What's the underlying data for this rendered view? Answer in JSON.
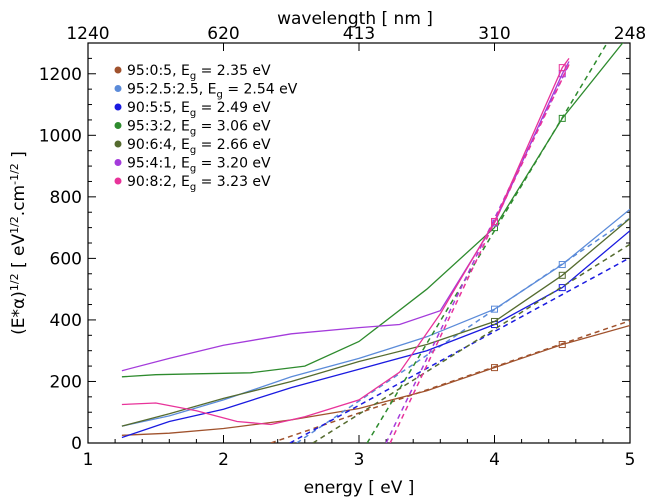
{
  "chart_data": {
    "type": "line",
    "xlabel": "energy [ eV ]",
    "ylabel": "(E*α)^1/2  [ eV^1/2.cm^-1/2 ]",
    "top_axis_label": "wavelength [ nm ]",
    "x_ticks": [
      "1",
      "2",
      "3",
      "4",
      "5"
    ],
    "y_ticks": [
      "0",
      "200",
      "400",
      "600",
      "800",
      "1000",
      "1200"
    ],
    "top_ticks": [
      {
        "label": "1240",
        "energy": 1
      },
      {
        "label": "620",
        "energy": 2
      },
      {
        "label": "413",
        "energy": 3
      },
      {
        "label": "310",
        "energy": 4
      },
      {
        "label": "248",
        "energy": 5
      }
    ],
    "xlim": [
      1,
      5
    ],
    "ylim": [
      0,
      1300
    ],
    "grid": false,
    "legend_position": "top-left",
    "series": [
      {
        "name": "95:0:5, E_g = 2.35 eV",
        "label_text": "95:0:5, E",
        "eg_text": "=  2.35 eV",
        "color": "#a0522d",
        "eg": 2.35,
        "points": [
          [
            1.25,
            25
          ],
          [
            1.6,
            32
          ],
          [
            2,
            47
          ],
          [
            2.5,
            75
          ],
          [
            3,
            112
          ],
          [
            3.5,
            170
          ],
          [
            4,
            245
          ],
          [
            4.5,
            320
          ],
          [
            5,
            382
          ]
        ],
        "fit": {
          "x": [
            2.35,
            5
          ],
          "slope": 150
        },
        "markers": [
          [
            4,
            245
          ],
          [
            4.5,
            320
          ]
        ]
      },
      {
        "name": "95:2.5:2.5, E_g = 2.54 eV",
        "label_text": "95:2.5:2.5, E",
        "eg_text": "=  2.54 eV",
        "color": "#5b8bd9",
        "eg": 2.54,
        "points": [
          [
            1.25,
            55
          ],
          [
            1.6,
            88
          ],
          [
            2,
            140
          ],
          [
            2.5,
            215
          ],
          [
            3,
            275
          ],
          [
            3.5,
            345
          ],
          [
            4,
            435
          ],
          [
            4.5,
            580
          ],
          [
            5,
            760
          ]
        ],
        "fit": {
          "x": [
            2.54,
            5
          ],
          "slope": 297
        },
        "markers": [
          [
            4,
            435
          ],
          [
            4.5,
            580
          ]
        ]
      },
      {
        "name": "90:5:5, E_g = 2.49 eV",
        "label_text": "90:5:5, E",
        "eg_text": "=  2.49 eV",
        "color": "#1a1ae0",
        "eg": 2.49,
        "points": [
          [
            1.25,
            18
          ],
          [
            1.6,
            70
          ],
          [
            2,
            110
          ],
          [
            2.5,
            180
          ],
          [
            3,
            240
          ],
          [
            3.5,
            300
          ],
          [
            4,
            385
          ],
          [
            4.5,
            505
          ],
          [
            5,
            690
          ]
        ],
        "fit": {
          "x": [
            2.49,
            5
          ],
          "slope": 240
        },
        "markers": [
          [
            4,
            385
          ],
          [
            4.5,
            505
          ]
        ]
      },
      {
        "name": "95:3:2, E_g = 3.06 eV",
        "label_text": "95:3:2, E",
        "eg_text": "=  3.06 eV",
        "color": "#2e8b2e",
        "eg": 3.06,
        "points": [
          [
            1.25,
            215
          ],
          [
            1.5,
            222
          ],
          [
            1.8,
            225
          ],
          [
            2.2,
            228
          ],
          [
            2.6,
            250
          ],
          [
            3,
            330
          ],
          [
            3.5,
            500
          ],
          [
            4,
            700
          ],
          [
            4.5,
            1055
          ],
          [
            5,
            1330
          ]
        ],
        "fit": {
          "x": [
            3.06,
            5
          ],
          "slope": 734
        },
        "markers": [
          [
            4,
            700
          ],
          [
            4.5,
            1055
          ]
        ]
      },
      {
        "name": "90:6:4, E_g = 2.66 eV",
        "label_text": "90:6:4, E",
        "eg_text": "=  2.66 eV",
        "color": "#556b2f",
        "eg": 2.66,
        "points": [
          [
            1.25,
            55
          ],
          [
            1.6,
            95
          ],
          [
            2,
            145
          ],
          [
            2.5,
            200
          ],
          [
            3,
            265
          ],
          [
            3.5,
            320
          ],
          [
            4,
            395
          ],
          [
            4.5,
            545
          ],
          [
            5,
            730
          ]
        ],
        "fit": {
          "x": [
            2.66,
            5
          ],
          "slope": 276
        },
        "markers": [
          [
            4,
            395
          ],
          [
            4.5,
            545
          ]
        ]
      },
      {
        "name": "95:4:1, E_g = 3.20 eV",
        "label_text": "95:4:1, E",
        "eg_text": "=  3.20 eV",
        "color": "#a43bdb",
        "eg": 3.2,
        "points": [
          [
            1.25,
            235
          ],
          [
            1.6,
            275
          ],
          [
            2,
            318
          ],
          [
            2.5,
            355
          ],
          [
            3,
            375
          ],
          [
            3.3,
            385
          ],
          [
            3.6,
            430
          ],
          [
            4,
            715
          ],
          [
            4.5,
            1200
          ],
          [
            4.55,
            1240
          ]
        ],
        "fit": {
          "x": [
            3.2,
            4.55
          ],
          "slope": 912
        },
        "markers": [
          [
            4,
            715
          ],
          [
            4.5,
            1200
          ]
        ]
      },
      {
        "name": "90:8:2, E_g = 3.23 eV",
        "label_text": "90:8:2, E",
        "eg_text": "=  3.23 eV",
        "color": "#e8339a",
        "eg": 3.23,
        "points": [
          [
            1.25,
            125
          ],
          [
            1.5,
            130
          ],
          [
            1.8,
            105
          ],
          [
            2.1,
            70
          ],
          [
            2.35,
            60
          ],
          [
            2.6,
            85
          ],
          [
            3,
            140
          ],
          [
            3.3,
            230
          ],
          [
            3.6,
            420
          ],
          [
            4,
            720
          ],
          [
            4.5,
            1220
          ],
          [
            4.55,
            1250
          ]
        ],
        "fit": {
          "x": [
            3.23,
            4.55
          ],
          "slope": 932
        },
        "markers": [
          [
            4,
            720
          ],
          [
            4.5,
            1220
          ]
        ]
      }
    ]
  }
}
